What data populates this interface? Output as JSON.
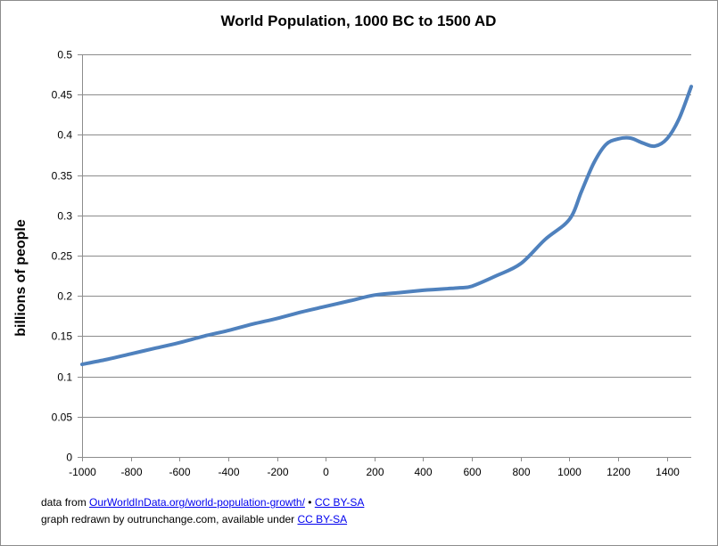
{
  "chart_data": {
    "type": "line",
    "title": "World Population,  1000 BC to 1500 AD",
    "xlabel": "",
    "ylabel": "billions of people",
    "xlim": [
      -1000,
      1500
    ],
    "ylim": [
      0,
      0.5
    ],
    "grid": true,
    "legend": "none",
    "series_color": "#4f81bd",
    "gridline_color": "#8c8c8c",
    "x_ticks": [
      "-1000",
      "-800",
      "-600",
      "-400",
      "-200",
      "0",
      "200",
      "400",
      "600",
      "800",
      "1000",
      "1200",
      "1400"
    ],
    "y_ticks": [
      "0",
      "0.05",
      "0.1",
      "0.15",
      "0.2",
      "0.25",
      "0.3",
      "0.35",
      "0.4",
      "0.45",
      "0.5"
    ],
    "series": [
      {
        "name": "World Population",
        "x": [
          -1000,
          -900,
          -800,
          -700,
          -600,
          -500,
          -400,
          -300,
          -200,
          -100,
          0,
          100,
          200,
          300,
          400,
          450,
          500,
          550,
          600,
          700,
          800,
          900,
          1000,
          1050,
          1100,
          1150,
          1200,
          1250,
          1300,
          1350,
          1400,
          1450,
          1500
        ],
        "values": [
          0.115,
          0.121,
          0.128,
          0.135,
          0.142,
          0.15,
          0.157,
          0.165,
          0.172,
          0.18,
          0.187,
          0.194,
          0.201,
          0.204,
          0.207,
          0.208,
          0.209,
          0.21,
          0.212,
          0.225,
          0.24,
          0.27,
          0.295,
          0.33,
          0.365,
          0.388,
          0.395,
          0.396,
          0.39,
          0.386,
          0.395,
          0.42,
          0.46
        ]
      }
    ]
  },
  "footer": {
    "line1_prefix": "data from ",
    "line1_link": "OurWorldInData.org/world-population-growth/",
    "line1_separator": " • ",
    "line1_license": "CC BY-SA",
    "line2_prefix": "graph redrawn by outrunchange.com, available under  ",
    "line2_license": "CC BY-SA"
  }
}
